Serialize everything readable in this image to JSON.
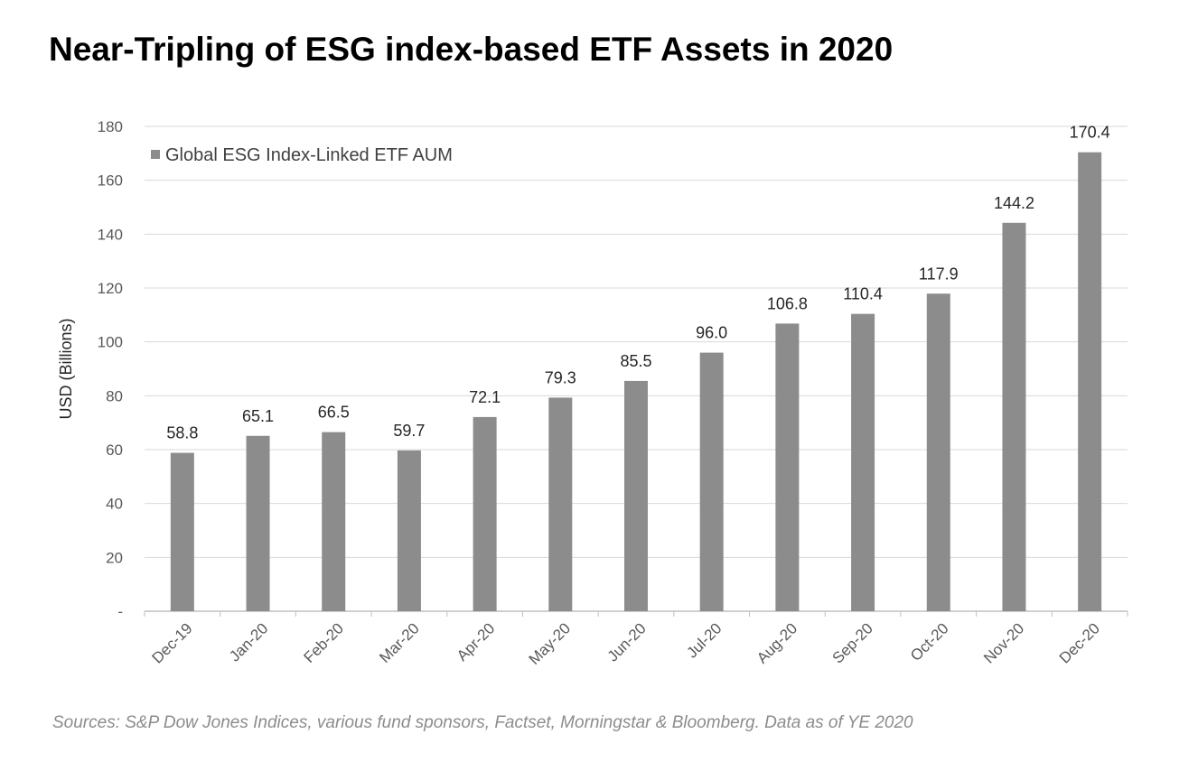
{
  "title": "Near-Tripling of ESG index-based ETF Assets in 2020",
  "source_note": "Sources: S&P Dow Jones Indices, various fund sponsors, Factset, Morningstar & Bloomberg.  Data as of YE 2020",
  "colors": {
    "bar": "#8c8c8c",
    "grid": "#d9d9d9",
    "axis": "#bfbfbf"
  },
  "chart_data": {
    "type": "bar",
    "title": "Near-Tripling of ESG index-based ETF Assets in 2020",
    "xlabel": "",
    "ylabel": "USD (Billions)",
    "ylim": [
      0,
      180
    ],
    "yticks": [
      0,
      20,
      40,
      60,
      80,
      100,
      120,
      140,
      160,
      180
    ],
    "ytick_labels": [
      "-",
      "20",
      "40",
      "60",
      "80",
      "100",
      "120",
      "140",
      "160",
      "180"
    ],
    "grid": true,
    "legend": "top-left",
    "categories": [
      "Dec-19",
      "Jan-20",
      "Feb-20",
      "Mar-20",
      "Apr-20",
      "May-20",
      "Jun-20",
      "Jul-20",
      "Aug-20",
      "Sep-20",
      "Oct-20",
      "Nov-20",
      "Dec-20"
    ],
    "series": [
      {
        "name": "Global ESG Index-Linked ETF AUM",
        "values": [
          58.8,
          65.1,
          66.5,
          59.7,
          72.1,
          79.3,
          85.5,
          96.0,
          106.8,
          110.4,
          117.9,
          144.2,
          170.4
        ],
        "labels": [
          "58.8",
          "65.1",
          "66.5",
          "59.7",
          "72.1",
          "79.3",
          "85.5",
          "96.0",
          "106.8",
          "110.4",
          "117.9",
          "144.2",
          "170.4"
        ]
      }
    ]
  }
}
